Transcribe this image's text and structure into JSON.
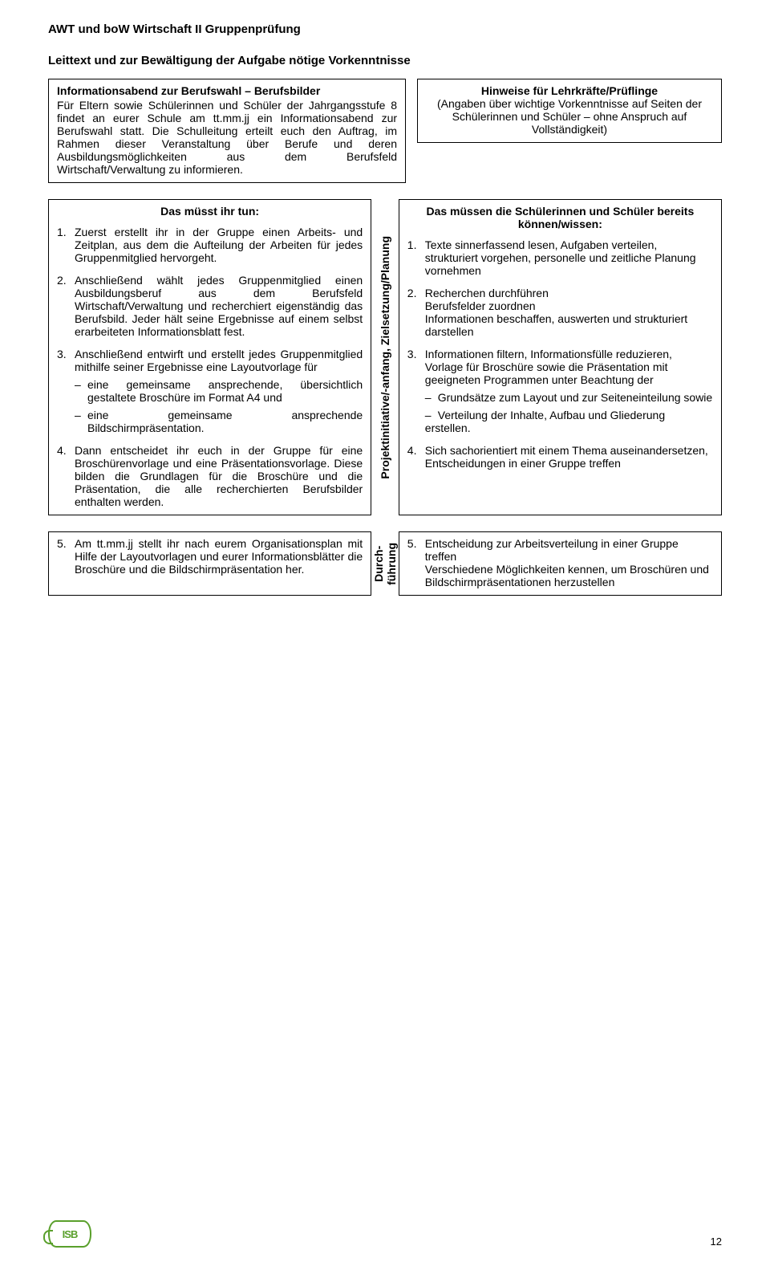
{
  "header": "AWT und boW Wirtschaft II Gruppenprüfung",
  "subtitle": "Leittext und zur Bewältigung der Aufgabe nötige Vorkenntnisse",
  "intro": {
    "title": "Informationsabend zur Berufswahl – Berufsbilder",
    "body": "Für Eltern sowie Schülerinnen und Schüler der Jahrgangsstufe 8 findet an eurer Schule am tt.mm.jj ein Informationsabend zur Berufswahl statt. Die Schulleitung erteilt euch den Auftrag, im Rahmen dieser Veranstaltung über Berufe und deren Ausbildungsmöglichkeiten aus dem Berufsfeld Wirtschaft/Verwaltung zu informieren."
  },
  "hints": {
    "title": "Hinweise für Lehrkräfte/Prüflinge",
    "body": "(Angaben über wichtige Vorkenntnisse auf Seiten der Schülerinnen und Schüler – ohne Anspruch auf Vollständigkeit)"
  },
  "phase1_label": "Projektinitiative/-anfang, Zielsetzung/Planung",
  "left": {
    "title": "Das müsst ihr tun:",
    "items": [
      {
        "n": "1.",
        "t": "Zuerst erstellt ihr in der Gruppe einen Arbeits- und Zeitplan, aus dem die Aufteilung der Arbeiten für jedes Gruppenmitglied hervorgeht."
      },
      {
        "n": "2.",
        "t": "Anschließend wählt jedes Gruppenmitglied einen Ausbildungsberuf aus dem Berufsfeld Wirtschaft/Verwaltung und recherchiert eigenständig das Berufsbild. Jeder hält seine Ergebnisse auf einem selbst erarbeiteten Informationsblatt fest."
      },
      {
        "n": "3.",
        "t": "Anschließend entwirft und erstellt jedes Gruppenmitglied mithilfe seiner Ergebnisse eine Layoutvorlage für",
        "sub": [
          "eine gemeinsame ansprechende, übersichtlich gestaltete Broschüre im Format A4 und",
          "eine gemeinsame ansprechende Bildschirmpräsentation."
        ]
      },
      {
        "n": "4.",
        "t": "Dann entscheidet ihr euch in der Gruppe für eine Broschürenvorlage und eine Präsentationsvorlage. Diese bilden die Grundlagen für die Broschüre und die Präsentation, die alle recherchierten Berufsbilder enthalten werden."
      }
    ]
  },
  "right": {
    "title": "Das müssen die Schülerinnen und Schüler bereits können/wissen:",
    "items": [
      {
        "n": "1.",
        "t": "Texte sinnerfassend lesen, Aufgaben verteilen, strukturiert vorgehen, personelle und zeitliche Planung vornehmen"
      },
      {
        "n": "2.",
        "t": "Recherchen durchführen\nBerufsfelder zuordnen\nInformationen beschaffen, auswerten und strukturiert darstellen"
      },
      {
        "n": "3.",
        "t": "Informationen filtern, Informationsfülle reduzieren, Vorlage für Broschüre sowie die Präsentation mit geeigneten Programmen unter Beachtung der",
        "sub": [
          "Grundsätze zum Layout und zur Seiteneinteilung sowie",
          "Verteilung der Inhalte, Aufbau und Gliederung"
        ],
        "tail": "erstellen."
      },
      {
        "n": "4.",
        "t": "Sich sachorientiert mit einem Thema auseinandersetzen, Entscheidungen in einer Gruppe treffen"
      }
    ]
  },
  "phase2_label": "Durch-\nführung",
  "left2": {
    "n": "5.",
    "t": "Am tt.mm.jj stellt ihr nach eurem Organisationsplan mit Hilfe der Layoutvorlagen und eurer Informationsblätter die Broschüre und die Bildschirmpräsentation her."
  },
  "right2": {
    "n": "5.",
    "t": "Entscheidung zur Arbeitsverteilung in einer Gruppe treffen\nVerschiedene Möglichkeiten kennen, um Broschüren und Bildschirmpräsentationen herzustellen"
  },
  "logo": "ISB",
  "page": "12"
}
